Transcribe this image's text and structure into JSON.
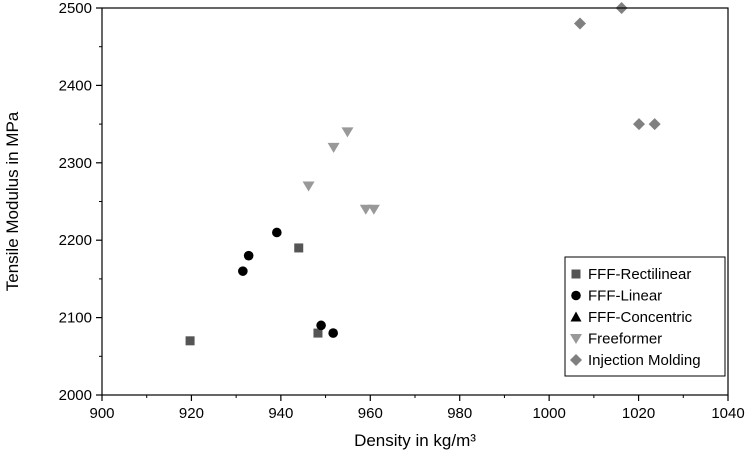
{
  "chart_data": {
    "type": "scatter",
    "title": "",
    "xlabel": "Density in kg/m³",
    "ylabel": "Tensile Modulus in MPa",
    "xlim": [
      900,
      1040
    ],
    "ylim": [
      2000,
      2500
    ],
    "xticks": [
      900,
      920,
      940,
      960,
      980,
      1000,
      1020,
      1040
    ],
    "yticks": [
      2000,
      2100,
      2200,
      2300,
      2400,
      2500
    ],
    "xtick_labels": [
      "900",
      "920",
      "940",
      "960",
      "980",
      "1000",
      "1020",
      "1040"
    ],
    "ytick_labels": [
      "2000",
      "2100",
      "2200",
      "2300",
      "2400",
      "2500"
    ],
    "grid": false,
    "legend_position": "bottom-right",
    "series": [
      {
        "name": "FFF-Rectilinear",
        "marker": "square",
        "color": "#555555",
        "points": [
          [
            919.7,
            2070
          ],
          [
            944,
            2190
          ],
          [
            948.3,
            2080
          ]
        ]
      },
      {
        "name": "FFF-Linear",
        "marker": "circle",
        "color": "#000000",
        "points": [
          [
            931.5,
            2160
          ],
          [
            932.8,
            2180
          ],
          [
            939.1,
            2210
          ],
          [
            949,
            2090
          ],
          [
            951.7,
            2080
          ]
        ]
      },
      {
        "name": "FFF-Concentric",
        "marker": "triangle-up",
        "color": "#000000",
        "points": []
      },
      {
        "name": "Freeformer",
        "marker": "triangle-down",
        "color": "#999999",
        "points": [
          [
            946.2,
            2270
          ],
          [
            951.8,
            2320
          ],
          [
            954.9,
            2340
          ],
          [
            959,
            2240
          ],
          [
            960.8,
            2240
          ]
        ]
      },
      {
        "name": "Injection Molding",
        "marker": "diamond",
        "color": "#808080",
        "points": [
          [
            1006.9,
            2480
          ],
          [
            1016.2,
            2500
          ],
          [
            1020.1,
            2350
          ],
          [
            1023.6,
            2350
          ]
        ]
      }
    ]
  }
}
